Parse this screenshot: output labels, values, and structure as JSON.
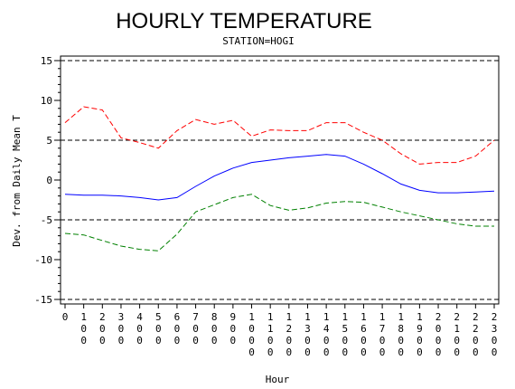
{
  "chart_data": {
    "type": "line",
    "title": "HOURLY TEMPERATURE",
    "subtitle": "STATION=HOGI",
    "xlabel": "Hour",
    "ylabel": "Dev. from Daily Mean T",
    "xlim": [
      0,
      2300
    ],
    "ylim": [
      -15,
      15
    ],
    "x": [
      0,
      100,
      200,
      300,
      400,
      500,
      600,
      700,
      800,
      900,
      1000,
      1100,
      1200,
      1300,
      1400,
      1500,
      1600,
      1700,
      1800,
      1900,
      2000,
      2100,
      2200,
      2300
    ],
    "x_tick_labels": [
      "0",
      "100",
      "200",
      "300",
      "400",
      "500",
      "600",
      "700",
      "800",
      "900",
      "1000",
      "1100",
      "1200",
      "1300",
      "1400",
      "1500",
      "1600",
      "1700",
      "1800",
      "1900",
      "2000",
      "2100",
      "2200",
      "2300"
    ],
    "y_ticks": [
      -15,
      -10,
      -5,
      0,
      5,
      10,
      15
    ],
    "reference_lines": [
      -15,
      -5,
      5,
      15
    ],
    "series": [
      {
        "color": "#ff0000",
        "dash": "dashed",
        "values": [
          7.2,
          9.2,
          8.8,
          5.3,
          4.7,
          4.0,
          6.2,
          7.6,
          7.0,
          7.5,
          5.5,
          6.3,
          6.2,
          6.2,
          7.2,
          7.2,
          6.0,
          5.0,
          3.3,
          2.0,
          2.2,
          2.2,
          3.0,
          5.0
        ]
      },
      {
        "color": "#0000ff",
        "dash": "solid",
        "values": [
          -1.8,
          -1.9,
          -1.9,
          -2.0,
          -2.2,
          -2.5,
          -2.2,
          -0.8,
          0.5,
          1.5,
          2.2,
          2.5,
          2.8,
          3.0,
          3.2,
          3.0,
          2.0,
          0.8,
          -0.5,
          -1.3,
          -1.6,
          -1.6,
          -1.5,
          -1.4
        ]
      },
      {
        "color": "#008000",
        "dash": "dashed",
        "values": [
          -6.7,
          -6.9,
          -7.6,
          -8.3,
          -8.7,
          -8.9,
          -6.8,
          -4.0,
          -3.1,
          -2.2,
          -1.8,
          -3.2,
          -3.8,
          -3.5,
          -2.9,
          -2.7,
          -2.8,
          -3.4,
          -4.0,
          -4.5,
          -5.0,
          -5.5,
          -5.8,
          -5.8
        ]
      }
    ],
    "grid": false,
    "legend": "none"
  }
}
